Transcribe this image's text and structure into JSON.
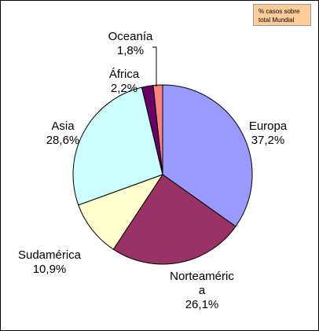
{
  "chart_data": {
    "type": "pie",
    "title": "% casos sobre total Mundial",
    "categories": [
      "Europa",
      "Norteamérica",
      "Sudamérica",
      "Asia",
      "África",
      "Oceanía"
    ],
    "values": [
      37.2,
      26.1,
      10.9,
      28.6,
      2.2,
      1.8
    ],
    "value_labels": [
      "37,2%",
      "26,1%",
      "10,9%",
      "28,6%",
      "2,2%",
      "1,8%"
    ],
    "colors": [
      "#9999ff",
      "#993366",
      "#ffffcc",
      "#ccffff",
      "#660066",
      "#ff8080"
    ]
  }
}
